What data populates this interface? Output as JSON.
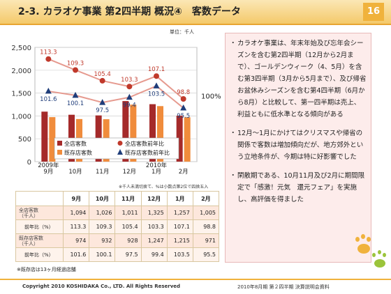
{
  "header": {
    "title": "2-3. カラオケ事業 第2四半期 概況④　客数データ",
    "page_number": "16"
  },
  "unit_label": "単位：千人",
  "chart_data": {
    "type": "bar",
    "categories": [
      "9月",
      "10月",
      "11月",
      "12月",
      "1月",
      "2月"
    ],
    "category_year_labels": [
      "2009年",
      "",
      "",
      "",
      "2010年",
      ""
    ],
    "series": [
      {
        "name": "全店客数",
        "values": [
          1094,
          1026,
          1011,
          1325,
          1257,
          1005
        ],
        "color": "#a52a2a"
      },
      {
        "name": "既存店客数",
        "values": [
          974,
          932,
          928,
          1247,
          1215,
          971
        ],
        "color": "#f08c3c"
      },
      {
        "name": "全店客数前年比",
        "values": [
          113.3,
          109.3,
          105.4,
          103.3,
          107.1,
          98.8
        ],
        "color": "#c0392b"
      },
      {
        "name": "既存店客数前年比",
        "values": [
          101.6,
          100.1,
          97.5,
          99.4,
          103.5,
          95.5
        ],
        "color": "#1f3d7a"
      }
    ],
    "y_ticks": [
      "0",
      "500",
      "1,000",
      "1,500",
      "2,000",
      "2,500"
    ],
    "ylim": [
      0,
      2500
    ],
    "right_axis_label": "100%",
    "legend": "bottom-right"
  },
  "table_note": "※千人未満切捨て、%は小数点第2位で四捨五入",
  "table": {
    "months": [
      "9月",
      "10月",
      "11月",
      "12月",
      "1月",
      "2月"
    ],
    "rows": [
      {
        "label": "全店客数",
        "label2": "（千人）",
        "values": [
          "1,094",
          "1,026",
          "1,011",
          "1,325",
          "1,257",
          "1,005"
        ]
      },
      {
        "label": "前年比（%）",
        "values": [
          "113.3",
          "109.3",
          "105.4",
          "103.3",
          "107.1",
          "98.8"
        ]
      },
      {
        "label": "既存店客数",
        "label2": "（千人）",
        "values": [
          "974",
          "932",
          "928",
          "1,247",
          "1,215",
          "971"
        ]
      },
      {
        "label": "前年比（%）",
        "values": [
          "101.6",
          "100.1",
          "97.5",
          "99.4",
          "103.5",
          "95.5"
        ]
      }
    ]
  },
  "footnote": "※既存店は13ヶ月経過店舗",
  "bullets": [
    "カラオケ事業は、年末年始及び忘年会シーズンを含む第2四半期（12月から2月まで）、ゴールデンウィーク（4、5月）を含む第3四半期（3月から5月まで）、及び帰省お盆休みシーズンを含む第4四半期（6月から8月）と比較して、第一四半期は売上、利益ともに低水準となる傾向がある",
    "12月～1月にかけてはクリスマスや帰省の関係で客数は増加傾向だが、地方郊外という立地条件が、今期は特に好影響でした",
    "閑散期である、10月11月及び2月に期間限定で「感激！元気　還元フェア」を実施し、高評価を得ました"
  ],
  "footer": {
    "copyright": "Copyright 2010 KOSHIDAKA Co., LTD. All Rights Reserved",
    "meeting": "2010年8月期 第２四半期 決算説明会資料"
  }
}
